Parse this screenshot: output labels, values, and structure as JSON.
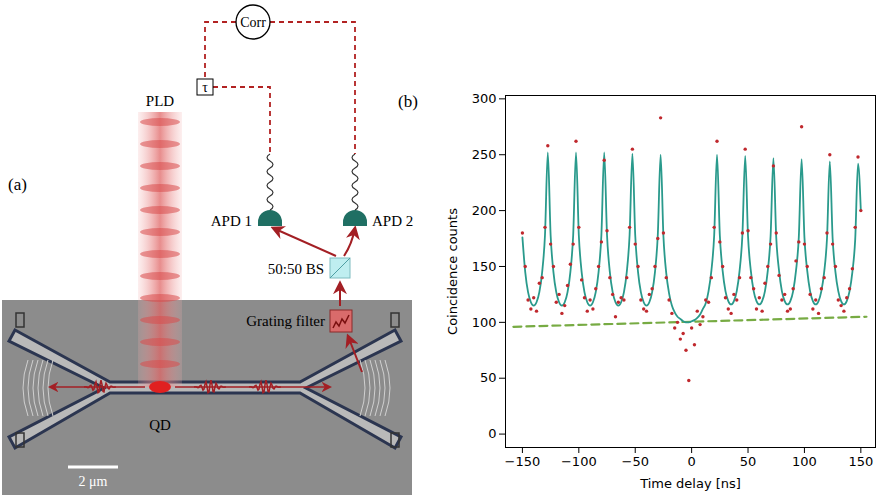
{
  "panels": [
    "(a)",
    "(b)"
  ],
  "diagram": {
    "beam": "PLD",
    "emitter": "QD",
    "scale_bar": "2 μm",
    "filter": "Grating filter",
    "beam_splitter": "50:50 BS",
    "detectors": [
      "APD 1",
      "APD 2"
    ],
    "correlator": "Corr",
    "delay": "τ"
  },
  "chart_data": {
    "type": "scatter",
    "x_label": "Time delay [ns]",
    "y_label": "Coincidence counts",
    "xlim": [
      -165,
      163
    ],
    "ylim": [
      -12,
      303
    ],
    "xticks": [
      -150,
      -100,
      -50,
      0,
      50,
      100,
      150
    ],
    "yticks": [
      0,
      50,
      100,
      150,
      200,
      250,
      300
    ],
    "x": [
      -150,
      -147.5,
      -145,
      -142.5,
      -140,
      -137.5,
      -135,
      -132.5,
      -130,
      -127.5,
      -125,
      -122.5,
      -120,
      -117.5,
      -115,
      -112.5,
      -110,
      -107.5,
      -105,
      -102.5,
      -100,
      -97.5,
      -95,
      -92.5,
      -90,
      -87.5,
      -85,
      -82.5,
      -80,
      -77.5,
      -75,
      -72.5,
      -70,
      -67.5,
      -65,
      -62.5,
      -60,
      -57.5,
      -55,
      -52.5,
      -50,
      -47.5,
      -45,
      -42.5,
      -40,
      -37.5,
      -35,
      -32.5,
      -30,
      -27.5,
      -25,
      -22.5,
      -20,
      -17.5,
      -15,
      -12.5,
      -10,
      -7.5,
      -5,
      -2.5,
      0,
      2.5,
      5,
      7.5,
      10,
      12.5,
      15,
      17.5,
      20,
      22.5,
      25,
      27.5,
      30,
      32.5,
      35,
      37.5,
      40,
      42.5,
      45,
      47.5,
      50,
      52.5,
      55,
      57.5,
      60,
      62.5,
      65,
      67.5,
      70,
      72.5,
      75,
      77.5,
      80,
      82.5,
      85,
      87.5,
      90,
      92.5,
      95,
      97.5,
      100,
      102.5,
      105,
      107.5,
      110,
      112.5,
      115,
      117.5,
      120,
      122.5,
      125,
      127.5,
      130,
      132.5,
      135,
      137.5,
      140,
      142.5,
      145,
      147.5,
      150
    ],
    "series": [
      {
        "type": "line",
        "color": "#77ab43",
        "line_style": "dashed",
        "x": [
          -158,
          155
        ],
        "values": [
          96,
          105
        ]
      },
      {
        "type": "line",
        "color": "#2a9a8c",
        "line_style": "solid",
        "values": [
          176,
          145,
          127,
          118,
          115,
          118,
          127,
          145,
          178,
          252,
          178,
          145,
          127,
          118,
          115,
          118,
          127,
          145,
          178,
          252,
          178,
          145,
          127,
          118,
          115,
          118,
          127,
          145,
          178,
          252,
          178,
          145,
          127,
          118,
          115,
          118,
          127,
          145,
          178,
          251,
          178,
          145,
          127,
          118,
          115,
          118,
          127,
          145,
          178,
          250,
          177,
          144,
          126,
          115,
          109,
          105,
          103,
          101,
          100,
          100,
          101,
          102,
          104,
          107,
          112,
          117,
          128,
          146,
          178,
          250,
          178,
          146,
          128,
          119,
          116,
          119,
          128,
          146,
          178,
          249,
          177,
          146,
          128,
          119,
          116,
          119,
          128,
          146,
          177,
          247,
          176,
          146,
          128,
          119,
          116,
          119,
          128,
          146,
          176,
          246,
          176,
          146,
          128,
          119,
          116,
          119,
          128,
          145,
          175,
          244,
          175,
          145,
          128,
          119,
          116,
          119,
          128,
          145,
          174,
          242,
          200
        ]
      },
      {
        "type": "scatter",
        "color": "#c0282d",
        "marker": "circle",
        "values": [
          180,
          150,
          120,
          112,
          122,
          110,
          135,
          140,
          185,
          258,
          170,
          150,
          118,
          125,
          108,
          115,
          133,
          152,
          170,
          262,
          185,
          138,
          122,
          110,
          120,
          112,
          130,
          150,
          172,
          245,
          182,
          140,
          125,
          105,
          118,
          122,
          120,
          140,
          185,
          255,
          170,
          150,
          120,
          112,
          110,
          125,
          130,
          150,
          175,
          283,
          180,
          140,
          120,
          108,
          95,
          100,
          85,
          90,
          75,
          48,
          95,
          80,
          110,
          98,
          105,
          120,
          118,
          140,
          185,
          262,
          172,
          150,
          122,
          112,
          108,
          125,
          120,
          140,
          180,
          255,
          182,
          140,
          130,
          112,
          122,
          110,
          135,
          150,
          170,
          240,
          180,
          142,
          120,
          125,
          110,
          112,
          130,
          155,
          172,
          275,
          170,
          150,
          125,
          112,
          120,
          108,
          130,
          140,
          180,
          250,
          170,
          150,
          120,
          115,
          110,
          122,
          130,
          148,
          185,
          248,
          200
        ]
      }
    ]
  }
}
